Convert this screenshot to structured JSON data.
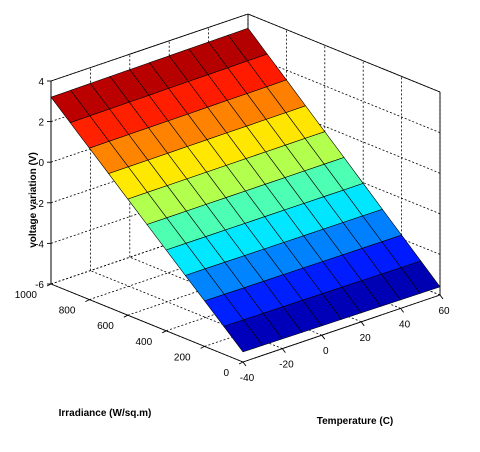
{
  "chart_data": {
    "type": "surface",
    "title": "",
    "xlabel": "Temperature (C)",
    "ylabel": "Irradiance (W/sq.m)",
    "zlabel": "voltage variation (V)",
    "xlim": [
      -40,
      60
    ],
    "ylim": [
      0,
      1000
    ],
    "zlim": [
      -6,
      4
    ],
    "x_ticks": [
      -40,
      -20,
      0,
      20,
      40,
      60
    ],
    "y_ticks": [
      0,
      200,
      400,
      600,
      800,
      1000
    ],
    "z_ticks": [
      -6,
      -4,
      -2,
      0,
      2,
      4
    ],
    "x": [
      -40,
      -30,
      -20,
      -10,
      0,
      10,
      20,
      30,
      40,
      50,
      60
    ],
    "y": [
      0,
      100,
      200,
      300,
      400,
      500,
      600,
      700,
      800,
      900,
      1000
    ],
    "z_model": "z = -1.1 + (x - 10) * 0.0 + (y - 500) * 0.0092 (approx. plane, irradiance-dominated)",
    "z_corners": {
      "x-40_y0": -5.5,
      "x60_y0": -5.6,
      "x-40_y1000": 3.2,
      "x60_y1000": 3.3
    },
    "colormap": "jet",
    "grid": true
  }
}
